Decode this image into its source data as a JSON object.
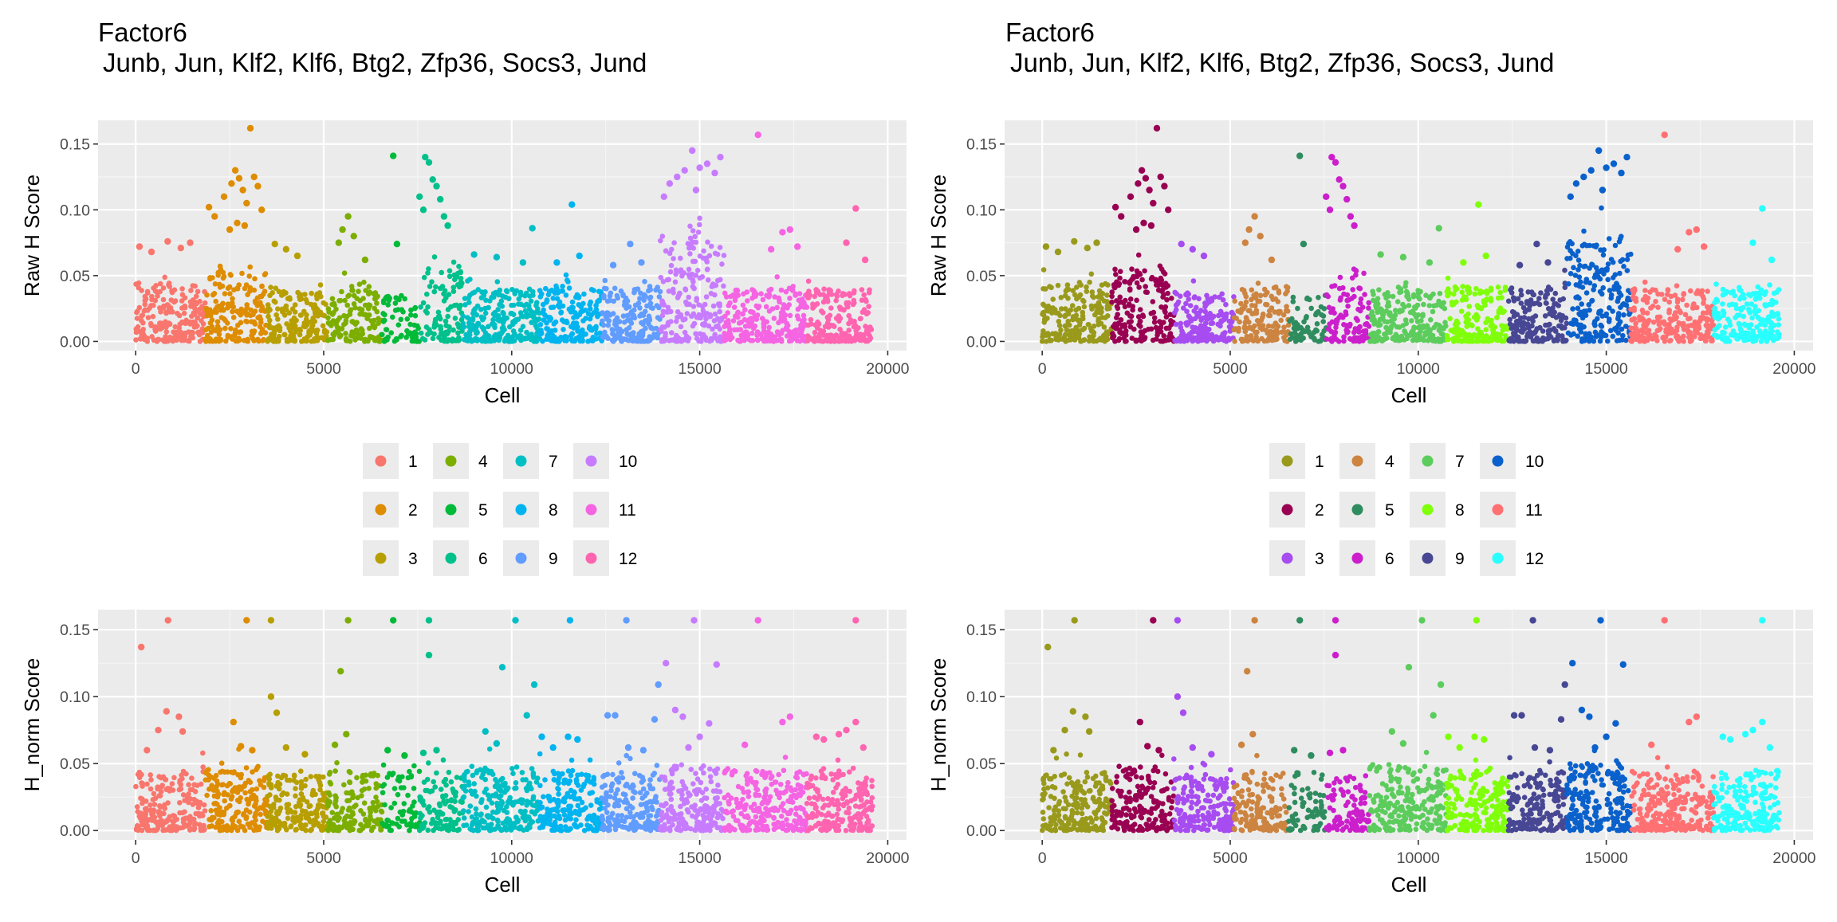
{
  "panels": [
    {
      "title": "Factor6",
      "subtitle": "Junb, Jun, Klf2, Klf6, Btg2, Zfp36, Socs3, Jund",
      "palette": [
        "#F8766D",
        "#DE8C00",
        "#B79F00",
        "#7CAE00",
        "#00BA38",
        "#00C08B",
        "#00BFC4",
        "#00B4F0",
        "#619CFF",
        "#C77CFF",
        "#F564E3",
        "#FF64B0"
      ],
      "legend_labels": [
        "1",
        "2",
        "3",
        "4",
        "5",
        "6",
        "7",
        "8",
        "9",
        "10",
        "11",
        "12"
      ]
    },
    {
      "title": "Factor6",
      "subtitle": "Junb, Jun, Klf2, Klf6, Btg2, Zfp36, Socs3, Jund",
      "palette": [
        "#999A1C",
        "#990052",
        "#A64CF0",
        "#CC8440",
        "#2E8C5E",
        "#CC1FCC",
        "#5CCC5C",
        "#80FF0A",
        "#474794",
        "#0A61CC",
        "#FF7073",
        "#29FFFF"
      ],
      "legend_labels": [
        "1",
        "2",
        "3",
        "4",
        "5",
        "6",
        "7",
        "8",
        "9",
        "10",
        "11",
        "12"
      ]
    }
  ],
  "axes": {
    "x_label": "Cell",
    "y_label_raw": "Raw H Score",
    "y_label_norm": "H_norm Score",
    "x_ticks": [
      "0",
      "5000",
      "10000",
      "15000",
      "20000"
    ],
    "y_ticks": [
      "0.00",
      "0.05",
      "0.10",
      "0.15"
    ]
  },
  "chart_data": {
    "type": "scatter",
    "x_range": [
      0,
      19600
    ],
    "xlim": [
      -1000,
      20500
    ],
    "raw_ylim": [
      -0.007,
      0.168
    ],
    "norm_ylim": [
      -0.007,
      0.165
    ],
    "clusters": [
      {
        "name": "1",
        "x_start": 0,
        "x_end": 1850,
        "raw_base_max": 0.045,
        "norm_base_max": 0.045,
        "density": 1.0
      },
      {
        "name": "2",
        "x_start": 1850,
        "x_end": 3500,
        "raw_base_max": 0.055,
        "norm_base_max": 0.048,
        "density": 1.0
      },
      {
        "name": "3",
        "x_start": 3500,
        "x_end": 5100,
        "raw_base_max": 0.038,
        "norm_base_max": 0.042,
        "density": 1.0
      },
      {
        "name": "4",
        "x_start": 5100,
        "x_end": 6550,
        "raw_base_max": 0.042,
        "norm_base_max": 0.045,
        "density": 0.9
      },
      {
        "name": "5",
        "x_start": 6550,
        "x_end": 7550,
        "raw_base_max": 0.035,
        "norm_base_max": 0.045,
        "density": 0.6
      },
      {
        "name": "6",
        "x_start": 7550,
        "x_end": 8700,
        "raw_base_max": 0.055,
        "norm_base_max": 0.042,
        "density": 0.8
      },
      {
        "name": "7",
        "x_start": 8700,
        "x_end": 10750,
        "raw_base_max": 0.04,
        "norm_base_max": 0.048,
        "density": 1.0
      },
      {
        "name": "8",
        "x_start": 10750,
        "x_end": 12400,
        "raw_base_max": 0.042,
        "norm_base_max": 0.045,
        "density": 1.0
      },
      {
        "name": "9",
        "x_start": 12400,
        "x_end": 13950,
        "raw_base_max": 0.042,
        "norm_base_max": 0.045,
        "density": 1.0
      },
      {
        "name": "10",
        "x_start": 13950,
        "x_end": 15650,
        "raw_base_max": 0.08,
        "norm_base_max": 0.05,
        "density": 1.1
      },
      {
        "name": "11",
        "x_start": 15650,
        "x_end": 17850,
        "raw_base_max": 0.04,
        "norm_base_max": 0.045,
        "density": 1.0
      },
      {
        "name": "12",
        "x_start": 17850,
        "x_end": 19600,
        "raw_base_max": 0.04,
        "norm_base_max": 0.045,
        "density": 1.0
      }
    ],
    "raw_highlights": [
      [
        100,
        0.072
      ],
      [
        420,
        0.068
      ],
      [
        850,
        0.076
      ],
      [
        1200,
        0.071
      ],
      [
        1450,
        0.075
      ],
      [
        1950,
        0.102
      ],
      [
        2100,
        0.095
      ],
      [
        2350,
        0.11
      ],
      [
        2500,
        0.085
      ],
      [
        2550,
        0.12
      ],
      [
        2650,
        0.13
      ],
      [
        2750,
        0.124
      ],
      [
        2850,
        0.115
      ],
      [
        2950,
        0.105
      ],
      [
        3050,
        0.162
      ],
      [
        3150,
        0.125
      ],
      [
        3250,
        0.118
      ],
      [
        3350,
        0.1
      ],
      [
        2700,
        0.09
      ],
      [
        2900,
        0.088
      ],
      [
        3700,
        0.074
      ],
      [
        4000,
        0.07
      ],
      [
        4300,
        0.065
      ],
      [
        5500,
        0.085
      ],
      [
        5650,
        0.095
      ],
      [
        5800,
        0.08
      ],
      [
        5400,
        0.075
      ],
      [
        6100,
        0.062
      ],
      [
        6850,
        0.141
      ],
      [
        6950,
        0.074
      ],
      [
        7550,
        0.11
      ],
      [
        7700,
        0.14
      ],
      [
        7800,
        0.136
      ],
      [
        7900,
        0.123
      ],
      [
        8000,
        0.118
      ],
      [
        8100,
        0.108
      ],
      [
        8200,
        0.095
      ],
      [
        8300,
        0.088
      ],
      [
        7650,
        0.1
      ],
      [
        9000,
        0.066
      ],
      [
        9600,
        0.064
      ],
      [
        10300,
        0.06
      ],
      [
        10550,
        0.086
      ],
      [
        11600,
        0.104
      ],
      [
        11200,
        0.06
      ],
      [
        11800,
        0.065
      ],
      [
        12700,
        0.058
      ],
      [
        13150,
        0.074
      ],
      [
        13450,
        0.06
      ],
      [
        14050,
        0.11
      ],
      [
        14200,
        0.12
      ],
      [
        14400,
        0.125
      ],
      [
        14600,
        0.13
      ],
      [
        14800,
        0.145
      ],
      [
        15000,
        0.132
      ],
      [
        15200,
        0.135
      ],
      [
        15400,
        0.128
      ],
      [
        15550,
        0.14
      ],
      [
        14900,
        0.115
      ],
      [
        16550,
        0.157
      ],
      [
        17200,
        0.083
      ],
      [
        17400,
        0.085
      ],
      [
        16900,
        0.07
      ],
      [
        17600,
        0.072
      ],
      [
        19150,
        0.101
      ],
      [
        18900,
        0.075
      ],
      [
        19400,
        0.062
      ]
    ],
    "norm_highlights": [
      [
        150,
        0.137
      ],
      [
        300,
        0.06
      ],
      [
        600,
        0.075
      ],
      [
        820,
        0.089
      ],
      [
        1150,
        0.085
      ],
      [
        1250,
        0.074
      ],
      [
        860,
        0.157
      ],
      [
        2600,
        0.081
      ],
      [
        2950,
        0.157
      ],
      [
        2800,
        0.063
      ],
      [
        3100,
        0.06
      ],
      [
        3600,
        0.157
      ],
      [
        3600,
        0.1
      ],
      [
        3750,
        0.088
      ],
      [
        4000,
        0.062
      ],
      [
        4500,
        0.057
      ],
      [
        5450,
        0.119
      ],
      [
        5650,
        0.157
      ],
      [
        5600,
        0.072
      ],
      [
        5300,
        0.064
      ],
      [
        6850,
        0.157
      ],
      [
        6700,
        0.06
      ],
      [
        7150,
        0.056
      ],
      [
        7800,
        0.157
      ],
      [
        7800,
        0.131
      ],
      [
        7650,
        0.058
      ],
      [
        8000,
        0.06
      ],
      [
        9300,
        0.074
      ],
      [
        9750,
        0.122
      ],
      [
        9600,
        0.065
      ],
      [
        10100,
        0.157
      ],
      [
        10400,
        0.086
      ],
      [
        10600,
        0.109
      ],
      [
        10800,
        0.07
      ],
      [
        11100,
        0.062
      ],
      [
        11550,
        0.157
      ],
      [
        11500,
        0.07
      ],
      [
        11750,
        0.068
      ],
      [
        12550,
        0.086
      ],
      [
        12750,
        0.086
      ],
      [
        13050,
        0.157
      ],
      [
        13100,
        0.062
      ],
      [
        13500,
        0.06
      ],
      [
        13800,
        0.083
      ],
      [
        13900,
        0.109
      ],
      [
        14100,
        0.125
      ],
      [
        14350,
        0.09
      ],
      [
        14550,
        0.085
      ],
      [
        14850,
        0.157
      ],
      [
        15000,
        0.07
      ],
      [
        15250,
        0.08
      ],
      [
        15450,
        0.124
      ],
      [
        14700,
        0.062
      ],
      [
        16550,
        0.157
      ],
      [
        16200,
        0.064
      ],
      [
        17200,
        0.081
      ],
      [
        17400,
        0.085
      ],
      [
        18100,
        0.07
      ],
      [
        18300,
        0.068
      ],
      [
        18700,
        0.072
      ],
      [
        18900,
        0.075
      ],
      [
        19150,
        0.157
      ],
      [
        19150,
        0.081
      ],
      [
        19350,
        0.062
      ]
    ]
  }
}
